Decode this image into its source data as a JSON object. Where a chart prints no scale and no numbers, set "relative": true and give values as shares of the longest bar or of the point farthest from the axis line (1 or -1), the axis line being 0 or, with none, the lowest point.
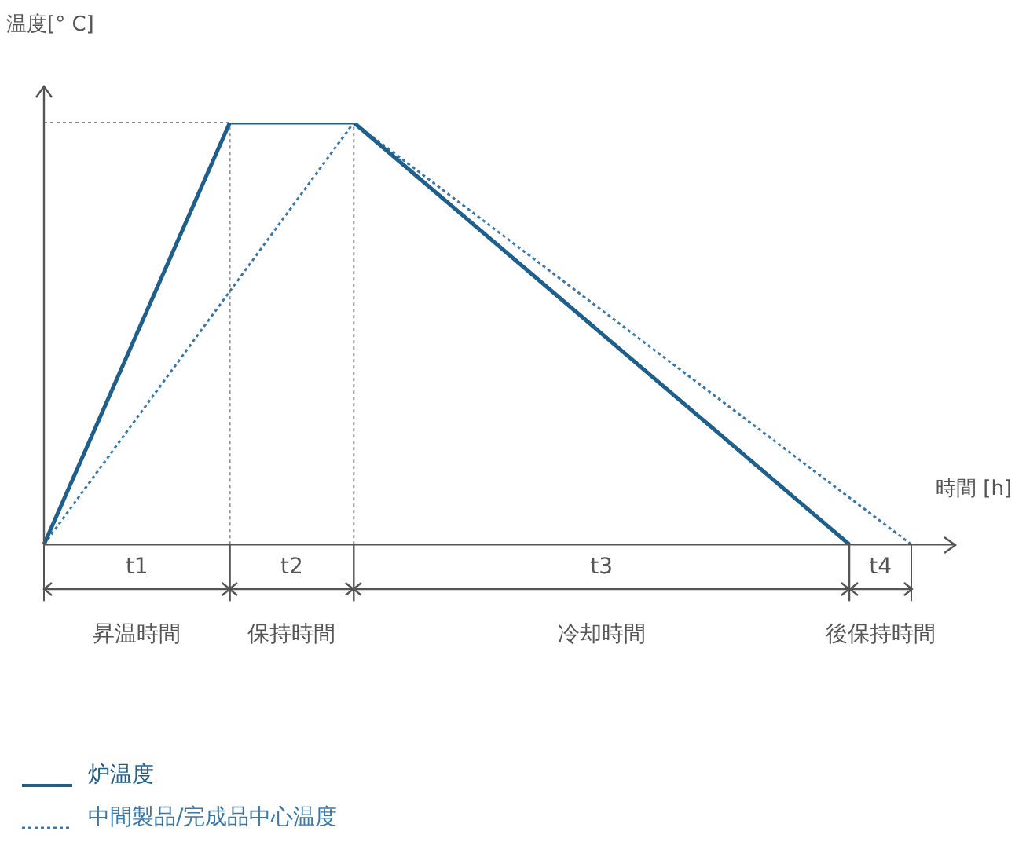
{
  "chart_data": {
    "type": "line",
    "relative": true,
    "xlabel": "時間 [h]",
    "ylabel": "温度[° C]",
    "categories": [
      null,
      null,
      null,
      null,
      null,
      null,
      null,
      null,
      null,
      null,
      null,
      null,
      null,
      null,
      null,
      null,
      null,
      null,
      null,
      null,
      null,
      null,
      null,
      null,
      null,
      null,
      null,
      null,
      null
    ],
    "marker": "none",
    "legend": "bottom left",
    "series": [
      {
        "name": "炉温度",
        "color": "#1f5f8b",
        "line_style": "solid",
        "values": [
          0,
          null,
          null,
          null,
          null,
          null,
          1,
          null,
          null,
          null,
          1,
          null,
          null,
          null,
          null,
          null,
          null,
          null,
          null,
          null,
          null,
          null,
          null,
          null,
          null,
          null,
          0,
          null,
          null
        ]
      },
      {
        "name": "中間製品/完成品中心温度",
        "color": "#3a78a8",
        "line_style": "dotted",
        "values": [
          0,
          null,
          null,
          null,
          null,
          null,
          null,
          null,
          null,
          null,
          1,
          null,
          null,
          null,
          null,
          null,
          null,
          null,
          null,
          null,
          null,
          null,
          null,
          null,
          null,
          null,
          null,
          null,
          0
        ]
      }
    ],
    "annotations": [
      "t1",
      "t2",
      "t3",
      "t4",
      "昇温時間",
      "保持時間",
      "冷却時間",
      "後保持時間"
    ]
  }
}
